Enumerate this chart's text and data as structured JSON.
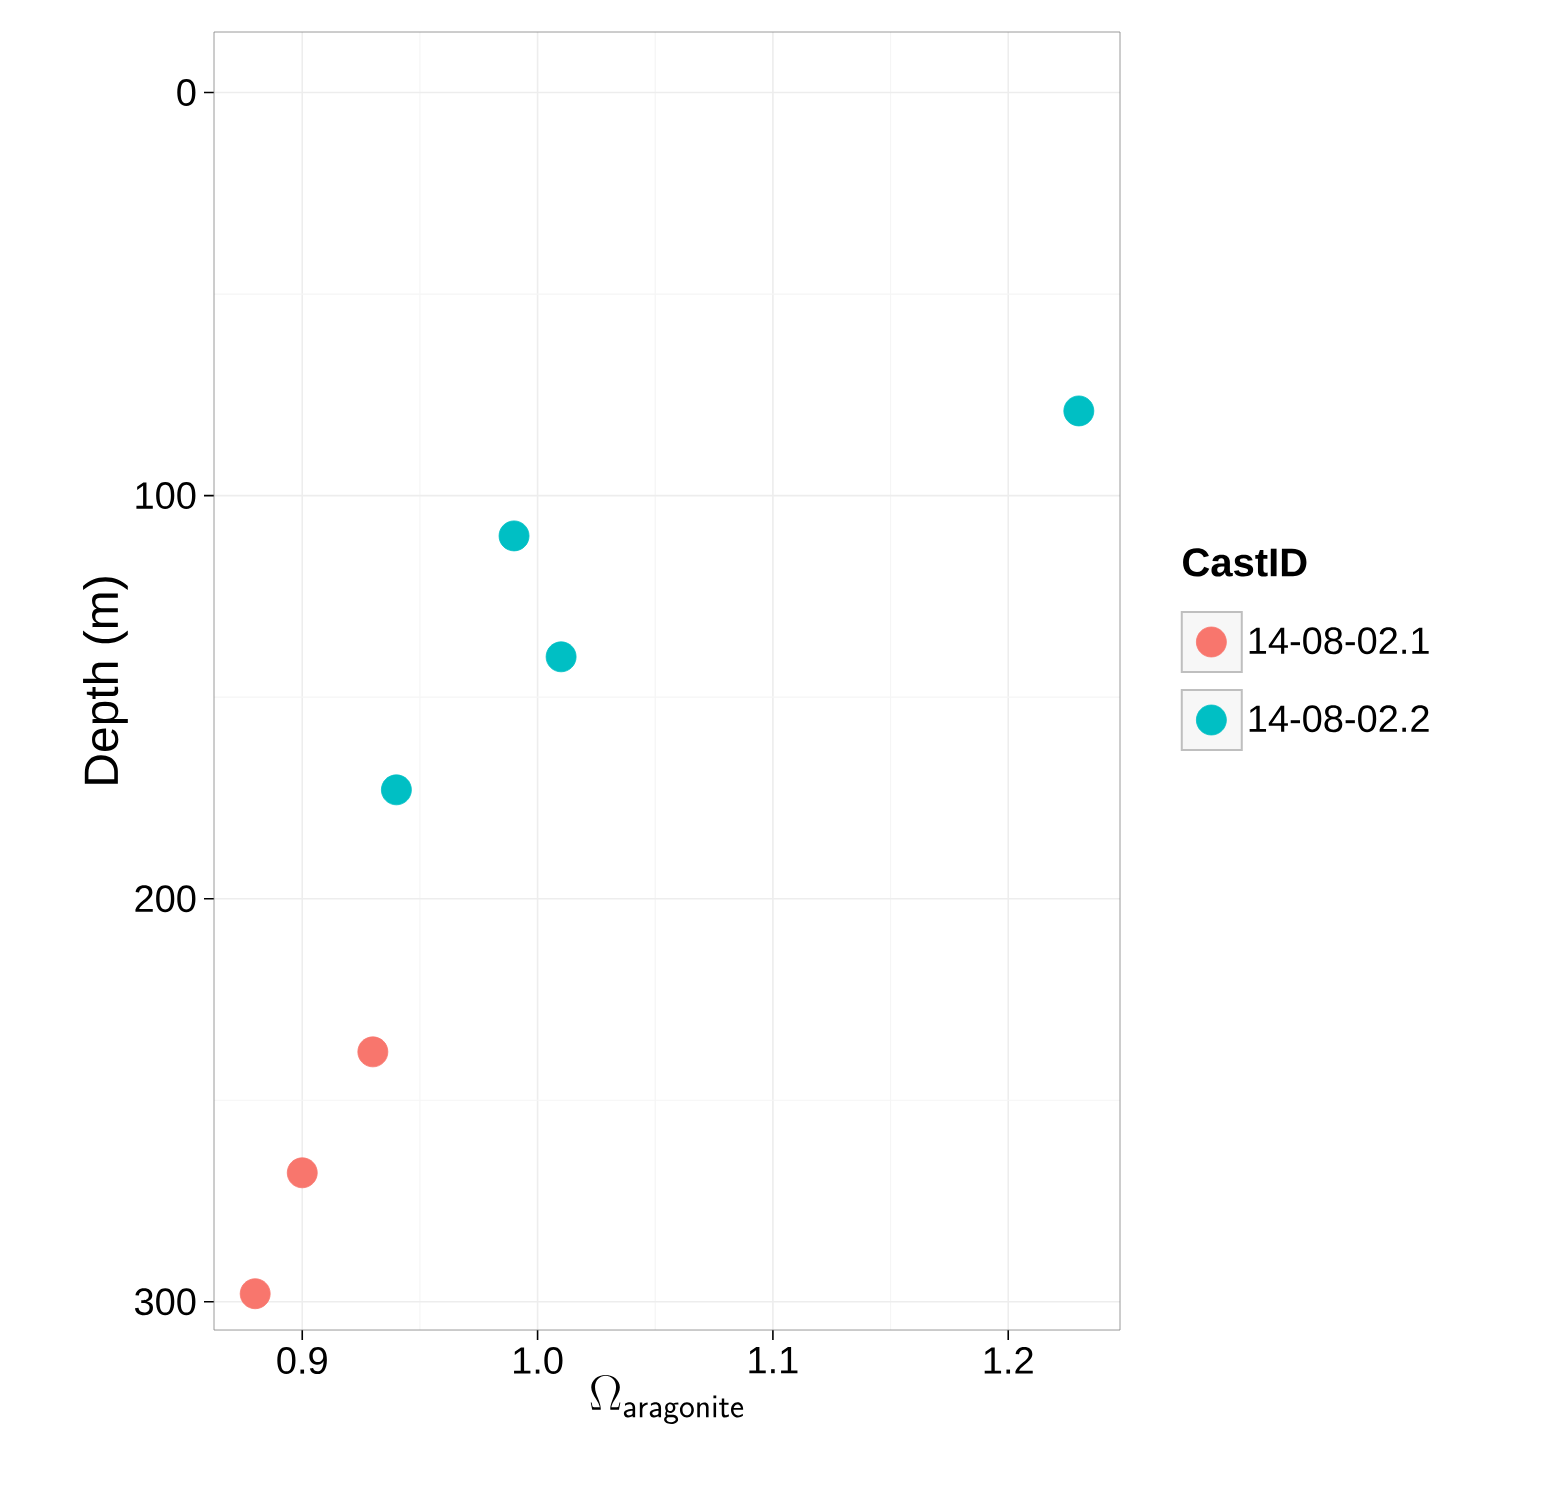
{
  "chart_data": {
    "type": "scatter",
    "xlabel": "\\Omega_{\\mathsf{aragonite}}",
    "ylabel": "Depth (m)",
    "legend_title": "CastID",
    "series": [
      {
        "name": "14-08-02.1",
        "color": "#f8766d",
        "x": [
          0.88,
          0.9,
          0.93
        ],
        "values": [
          298,
          268,
          238
        ]
      },
      {
        "name": "14-08-02.2",
        "color": "#00bfc4",
        "x": [
          0.94,
          0.99,
          1.01,
          1.23
        ],
        "values": [
          173,
          110,
          140,
          79
        ]
      }
    ],
    "xlim": [
      0.8625,
      1.2475
    ],
    "ylim": [
      307,
      -15
    ],
    "xticks": [
      {
        "value": 0.9,
        "label": "0.9"
      },
      {
        "value": 1.0,
        "label": "1.0"
      },
      {
        "value": 1.1,
        "label": "1.1"
      },
      {
        "value": 1.2,
        "label": "1.2"
      }
    ],
    "yticks": [
      0,
      100,
      200,
      300
    ],
    "grid": true,
    "legend": "right",
    "marker": "circle"
  }
}
